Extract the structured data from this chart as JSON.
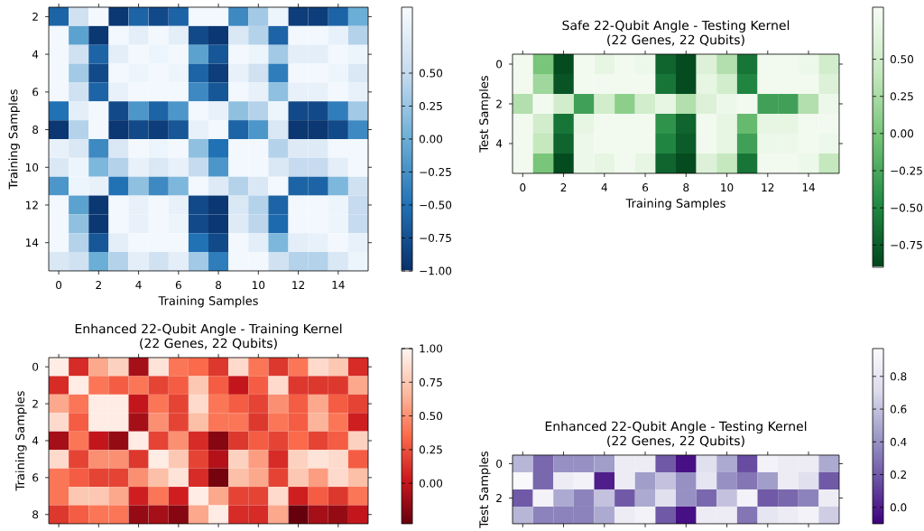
{
  "chart_data": [
    {
      "type": "heatmap",
      "xlabel": "Training Samples",
      "ylabel": "Training Samples",
      "categories": [
        "0",
        null,
        "2",
        null,
        "4",
        null,
        "6",
        null,
        "8",
        null,
        "10",
        null,
        "12",
        null,
        "14",
        null
      ],
      "y_categories": [
        "2",
        null,
        "4",
        null,
        "6",
        null,
        "8",
        null,
        "10",
        null,
        "12",
        null,
        "14",
        null
      ],
      "cells": [
        [
          -0.6,
          0.6,
          0.95,
          -0.95,
          -0.6,
          -0.8,
          -0.6,
          0.95,
          0.95,
          -0.3,
          0.3,
          0.9,
          -0.9,
          -0.9,
          -0.6,
          0.0
        ],
        [
          0.95,
          -0.1,
          -0.95,
          0.95,
          0.8,
          0.95,
          0.8,
          -0.8,
          -0.95,
          0.7,
          0.4,
          -0.6,
          0.95,
          0.95,
          0.85,
          0.4
        ],
        [
          0.95,
          0.6,
          -0.6,
          0.8,
          0.95,
          0.9,
          0.95,
          -0.1,
          -0.7,
          0.95,
          0.9,
          0.3,
          0.8,
          0.8,
          0.95,
          0.9
        ],
        [
          0.95,
          0.3,
          -0.8,
          0.95,
          0.9,
          0.95,
          0.9,
          -0.6,
          -0.9,
          0.85,
          0.6,
          -0.4,
          0.95,
          0.95,
          0.9,
          0.7
        ],
        [
          0.95,
          0.6,
          -0.6,
          0.85,
          0.95,
          0.95,
          0.95,
          -0.3,
          -0.7,
          0.95,
          0.85,
          0.2,
          0.85,
          0.85,
          0.95,
          0.85
        ],
        [
          -0.5,
          0.8,
          0.95,
          -0.8,
          -0.2,
          -0.6,
          -0.2,
          0.95,
          0.85,
          0.2,
          0.4,
          0.9,
          -0.8,
          -0.8,
          -0.4,
          0.3
        ],
        [
          -0.95,
          0.4,
          0.95,
          -0.95,
          -0.8,
          -0.9,
          -0.7,
          0.85,
          0.95,
          -0.6,
          -0.2,
          0.7,
          -0.95,
          -0.95,
          -0.8,
          -0.3
        ],
        [
          0.85,
          0.7,
          -0.3,
          0.7,
          0.95,
          0.9,
          0.95,
          0.2,
          -0.5,
          0.95,
          0.95,
          0.4,
          0.75,
          0.75,
          0.95,
          0.95
        ],
        [
          0.7,
          0.9,
          0.1,
          0.4,
          0.85,
          0.7,
          0.85,
          0.5,
          -0.2,
          0.95,
          0.95,
          0.7,
          0.5,
          0.5,
          0.8,
          0.95
        ],
        [
          -0.2,
          0.9,
          0.85,
          -0.5,
          0.2,
          -0.3,
          0.1,
          0.95,
          0.75,
          0.4,
          0.7,
          0.95,
          -0.6,
          -0.6,
          0.1,
          0.6
        ],
        [
          0.95,
          -0.1,
          -0.95,
          0.95,
          0.85,
          0.95,
          0.85,
          -0.8,
          -0.95,
          0.7,
          0.4,
          -0.6,
          0.95,
          0.95,
          0.9,
          0.5
        ],
        [
          0.95,
          0.2,
          -0.95,
          0.95,
          0.85,
          0.95,
          0.9,
          -0.8,
          -0.95,
          0.75,
          0.45,
          -0.55,
          0.95,
          0.95,
          0.9,
          0.5
        ],
        [
          0.95,
          0.4,
          -0.7,
          0.8,
          0.95,
          0.95,
          0.95,
          -0.5,
          -0.8,
          0.95,
          0.8,
          0.1,
          0.8,
          0.85,
          0.95,
          0.85
        ],
        [
          0.7,
          0.6,
          0.0,
          0.4,
          0.8,
          0.6,
          0.8,
          0.3,
          -0.4,
          0.95,
          0.95,
          0.6,
          0.4,
          0.4,
          0.7,
          0.9
        ]
      ],
      "clim": [
        -1,
        1
      ],
      "cticks": [
        {
          "value": -1,
          "label": "−1.00"
        },
        {
          "value": -0.75,
          "label": "−0.75"
        },
        {
          "value": -0.5,
          "label": "−0.50"
        },
        {
          "value": -0.25,
          "label": "−0.25"
        },
        {
          "value": 0,
          "label": "0.00"
        },
        {
          "value": 0.25,
          "label": "0.25"
        },
        {
          "value": 0.5,
          "label": "0.50"
        }
      ]
    },
    {
      "type": "heatmap",
      "title": "Safe 22-Qubit Angle - Testing Kernel",
      "subtitle": "(22 Genes, 22 Qubits)",
      "xlabel": "Training Samples",
      "ylabel": "Test Samples",
      "categories": [
        "0",
        null,
        "2",
        null,
        "4",
        null,
        "6",
        null,
        "8",
        null,
        "10",
        null,
        "12",
        null,
        "14",
        null
      ],
      "y_categories": [
        "0",
        null,
        "2",
        null,
        "4",
        null
      ],
      "cells": [
        [
          0.8,
          0.0,
          -0.85,
          0.8,
          0.7,
          0.8,
          0.75,
          -0.7,
          -0.85,
          0.6,
          0.3,
          -0.6,
          0.8,
          0.8,
          0.75,
          0.5
        ],
        [
          0.8,
          0.2,
          -0.8,
          0.8,
          0.8,
          0.8,
          0.8,
          -0.6,
          -0.85,
          0.7,
          0.5,
          -0.5,
          0.8,
          0.8,
          0.8,
          0.6
        ],
        [
          0.3,
          0.8,
          0.5,
          -0.3,
          0.5,
          0.1,
          0.5,
          0.7,
          0.3,
          0.6,
          0.75,
          0.8,
          -0.3,
          -0.3,
          0.3,
          0.75
        ],
        [
          0.8,
          0.5,
          -0.6,
          0.7,
          0.8,
          0.8,
          0.8,
          -0.4,
          -0.7,
          0.8,
          0.7,
          -0.1,
          0.7,
          0.7,
          0.8,
          0.8
        ],
        [
          0.8,
          0.4,
          -0.7,
          0.75,
          0.8,
          0.8,
          0.8,
          -0.5,
          -0.75,
          0.8,
          0.7,
          -0.3,
          0.75,
          0.75,
          0.8,
          0.75
        ],
        [
          0.8,
          0.0,
          -0.85,
          0.75,
          0.7,
          0.8,
          0.7,
          -0.7,
          -0.85,
          0.6,
          0.4,
          -0.6,
          0.8,
          0.8,
          0.75,
          0.4
        ]
      ],
      "clim": [
        -0.9,
        0.85
      ],
      "cticks": [
        {
          "value": -0.75,
          "label": "−0.75"
        },
        {
          "value": -0.5,
          "label": "−0.50"
        },
        {
          "value": -0.25,
          "label": "−0.25"
        },
        {
          "value": 0,
          "label": "0.00"
        },
        {
          "value": 0.25,
          "label": "0.25"
        },
        {
          "value": 0.5,
          "label": "0.50"
        }
      ]
    },
    {
      "type": "heatmap",
      "title": "Enhanced 22-Qubit Angle - Training Kernel",
      "subtitle": "(22 Genes, 22 Qubits)",
      "ylabel": "Training Samples",
      "categories": [
        null,
        null,
        null,
        null,
        null,
        null,
        null,
        null,
        null,
        null,
        null,
        null,
        null,
        null,
        null,
        null
      ],
      "y_categories": [
        "0",
        null,
        "2",
        null,
        "4",
        null,
        "6",
        null,
        "8"
      ],
      "cells": [
        [
          0.95,
          0.1,
          0.6,
          0.8,
          -0.1,
          0.9,
          0.4,
          0.35,
          0.15,
          0.85,
          0.4,
          0.15,
          0.4,
          0.85,
          0.75,
          0.1
        ],
        [
          0.1,
          0.95,
          0.4,
          0.3,
          0.4,
          0.2,
          0.3,
          0.75,
          0.3,
          0.0,
          0.3,
          0.85,
          0.15,
          0.15,
          0.15,
          0.6
        ],
        [
          0.6,
          0.4,
          0.95,
          0.95,
          0.0,
          0.4,
          0.2,
          0.85,
          0.4,
          0.3,
          0.2,
          0.5,
          0.3,
          0.6,
          0.3,
          0.2
        ],
        [
          0.85,
          0.3,
          0.95,
          0.95,
          -0.1,
          0.5,
          0.2,
          0.7,
          0.4,
          0.4,
          0.15,
          0.4,
          0.3,
          0.65,
          0.4,
          0.05
        ],
        [
          -0.1,
          0.4,
          0.0,
          -0.15,
          0.95,
          0.2,
          0.5,
          0.1,
          -0.2,
          0.15,
          0.3,
          0.2,
          0.35,
          0.2,
          0.3,
          0.8
        ],
        [
          0.85,
          0.2,
          0.5,
          0.5,
          0.15,
          0.95,
          0.75,
          0.2,
          -0.05,
          0.8,
          0.55,
          0.1,
          0.8,
          0.9,
          0.85,
          0.3
        ],
        [
          0.4,
          0.3,
          0.2,
          0.2,
          0.5,
          0.7,
          0.9,
          0.1,
          -0.25,
          0.7,
          0.6,
          0.2,
          0.75,
          0.55,
          0.85,
          0.7
        ],
        [
          0.4,
          0.75,
          0.75,
          0.6,
          0.05,
          0.4,
          0.05,
          0.95,
          0.6,
          0.2,
          0.2,
          0.85,
          0.05,
          0.3,
          0.15,
          0.4
        ],
        [
          0.15,
          0.3,
          0.4,
          0.4,
          -0.15,
          -0.1,
          -0.2,
          0.6,
          0.95,
          0.1,
          0.1,
          0.6,
          -0.3,
          -0.1,
          -0.15,
          0.0
        ]
      ],
      "clim": [
        -0.3,
        1
      ],
      "cticks": [
        {
          "value": 0,
          "label": "0.00"
        },
        {
          "value": 0.25,
          "label": "0.25"
        },
        {
          "value": 0.5,
          "label": "0.50"
        },
        {
          "value": 0.75,
          "label": "0.75"
        },
        {
          "value": 1,
          "label": "1.00"
        }
      ]
    },
    {
      "type": "heatmap",
      "title": "Enhanced 22-Qubit Angle - Testing Kernel",
      "subtitle": "(22 Genes, 22 Qubits)",
      "ylabel": "Test Samples",
      "categories": [
        null,
        null,
        null,
        null,
        null,
        null,
        null,
        null,
        null,
        null,
        null,
        null,
        null,
        null,
        null,
        null
      ],
      "y_categories": [
        "0",
        null,
        "2",
        null
      ],
      "cells": [
        [
          0.55,
          0.25,
          0.4,
          0.4,
          0.45,
          0.85,
          0.85,
          0.2,
          -0.05,
          0.75,
          0.5,
          0.15,
          0.9,
          0.85,
          0.85,
          0.5
        ],
        [
          0.95,
          0.25,
          0.85,
          0.9,
          0.0,
          0.85,
          0.45,
          0.6,
          0.4,
          0.8,
          0.4,
          0.3,
          0.45,
          0.85,
          0.75,
          0.2
        ],
        [
          0.2,
          0.9,
          0.5,
          0.35,
          0.6,
          0.2,
          0.5,
          0.75,
          0.4,
          0.25,
          0.6,
          0.9,
          0.2,
          0.25,
          0.35,
          0.85
        ],
        [
          0.55,
          0.35,
          0.35,
          0.35,
          0.5,
          0.85,
          0.9,
          0.2,
          -0.05,
          0.85,
          0.85,
          0.3,
          0.8,
          0.85,
          0.9,
          0.65
        ]
      ],
      "clim": [
        -0.1,
        0.97
      ],
      "cticks": [
        {
          "value": 0,
          "label": "0.0"
        },
        {
          "value": 0.2,
          "label": "0.2"
        },
        {
          "value": 0.4,
          "label": "0.4"
        },
        {
          "value": 0.6,
          "label": "0.6"
        },
        {
          "value": 0.8,
          "label": "0.8"
        }
      ]
    }
  ]
}
